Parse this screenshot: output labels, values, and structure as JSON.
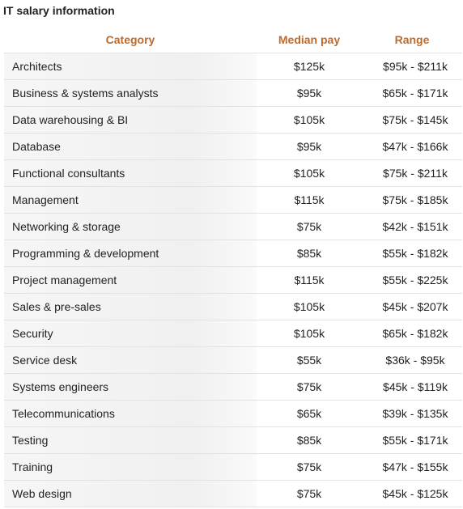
{
  "title": "IT salary information",
  "header": {
    "category": "Category",
    "median": "Median pay",
    "range": "Range"
  },
  "colors": {
    "header_text": "#c0692b",
    "row_divider": "#e2e2e2"
  },
  "rows": [
    {
      "category": "Architects",
      "median": "$125k",
      "range": "$95k - $211k"
    },
    {
      "category": "Business & systems analysts",
      "median": "$95k",
      "range": "$65k - $171k"
    },
    {
      "category": "Data warehousing & BI",
      "median": "$105k",
      "range": "$75k - $145k"
    },
    {
      "category": "Database",
      "median": "$95k",
      "range": "$47k - $166k"
    },
    {
      "category": "Functional consultants",
      "median": "$105k",
      "range": "$75k - $211k"
    },
    {
      "category": "Management",
      "median": "$115k",
      "range": "$75k - $185k"
    },
    {
      "category": "Networking & storage",
      "median": "$75k",
      "range": "$42k - $151k"
    },
    {
      "category": "Programming & development",
      "median": "$85k",
      "range": "$55k - $182k"
    },
    {
      "category": "Project management",
      "median": "$115k",
      "range": "$55k - $225k"
    },
    {
      "category": "Sales & pre-sales",
      "median": "$105k",
      "range": "$45k - $207k"
    },
    {
      "category": "Security",
      "median": "$105k",
      "range": "$65k - $182k"
    },
    {
      "category": "Service desk",
      "median": "$55k",
      "range": "$36k - $95k"
    },
    {
      "category": "Systems engineers",
      "median": "$75k",
      "range": "$45k - $119k"
    },
    {
      "category": "Telecommunications",
      "median": "$65k",
      "range": "$39k - $135k"
    },
    {
      "category": "Testing",
      "median": "$85k",
      "range": "$55k - $171k"
    },
    {
      "category": "Training",
      "median": "$75k",
      "range": "$47k - $155k"
    },
    {
      "category": "Web design",
      "median": "$75k",
      "range": "$45k - $125k"
    }
  ]
}
